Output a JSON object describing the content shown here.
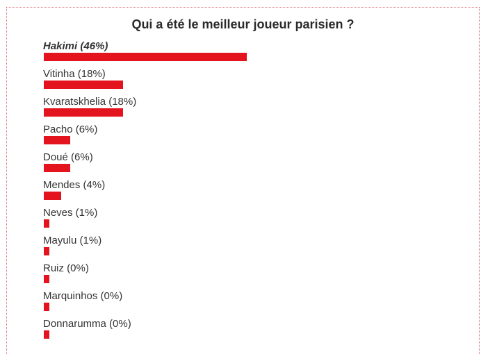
{
  "poll": {
    "title": "Qui a été le meilleur joueur parisien ?",
    "bar_color": "#e3141d",
    "options": [
      {
        "label": "Hakimi (46%)",
        "percent": 46,
        "leading": true
      },
      {
        "label": "Vitinha (18%)",
        "percent": 18
      },
      {
        "label": "Kvaratskhelia (18%)",
        "percent": 18
      },
      {
        "label": "Pacho (6%)",
        "percent": 6
      },
      {
        "label": "Doué (6%)",
        "percent": 6
      },
      {
        "label": "Mendes (4%)",
        "percent": 4
      },
      {
        "label": "Neves (1%)",
        "percent": 1
      },
      {
        "label": "Mayulu (1%)",
        "percent": 1
      },
      {
        "label": "Ruiz (0%)",
        "percent": 0
      },
      {
        "label": "Marquinhos (0%)",
        "percent": 0
      },
      {
        "label": "Donnarumma (0%)",
        "percent": 0
      }
    ]
  }
}
